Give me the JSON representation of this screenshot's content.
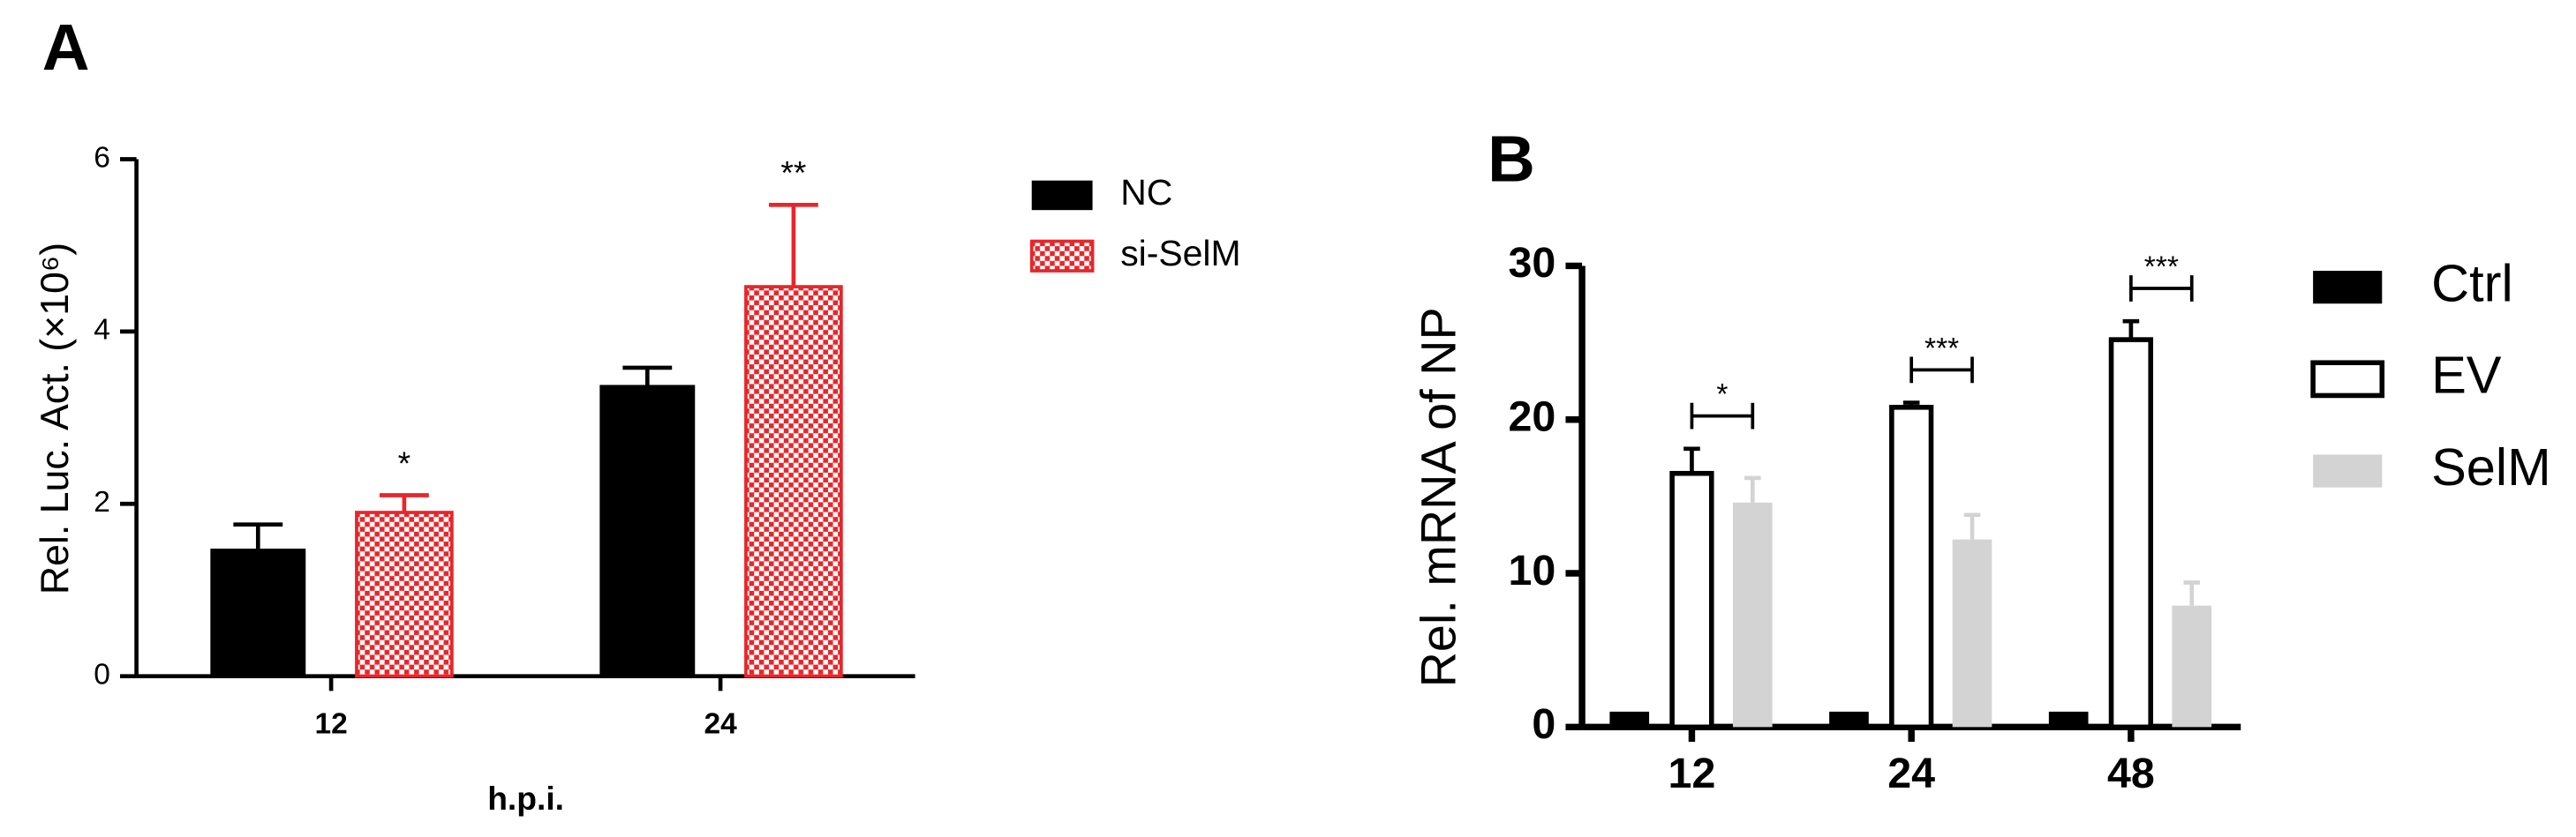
{
  "chart_data": [
    {
      "type": "bar",
      "panel": "A",
      "ylabel": "Rel. Luc. Act. (×10⁶)",
      "xlabel": "h.p.i.",
      "categories": [
        "12",
        "24"
      ],
      "series": [
        {
          "name": "NC",
          "color": "#000000",
          "fill_style": "solid",
          "values": [
            1.48,
            3.38
          ],
          "errors": [
            0.28,
            0.2
          ]
        },
        {
          "name": "si-SelM",
          "color": "#e8262a",
          "fill_style": "checkered",
          "values": [
            1.9,
            4.52
          ],
          "errors": [
            0.2,
            0.95
          ]
        }
      ],
      "annotations": [
        "*",
        "**"
      ],
      "ylim": [
        0,
        6
      ],
      "yticks": [
        0,
        2,
        4,
        6
      ]
    },
    {
      "type": "bar",
      "panel": "B",
      "ylabel": "Rel.  mRNA of NP",
      "categories": [
        "12",
        "24",
        "48"
      ],
      "series": [
        {
          "name": "Ctrl",
          "color": "#000000",
          "fill_style": "solid",
          "values": [
            1,
            1,
            1
          ]
        },
        {
          "name": "EV",
          "color": "#000000",
          "fill_style": "outline",
          "values": [
            16.5,
            20.8,
            25.2
          ],
          "errors": [
            1.6,
            0.3,
            1.2
          ]
        },
        {
          "name": "SelM",
          "color": "#d3d3d3",
          "fill_style": "solid",
          "values": [
            14.6,
            12.2,
            7.9
          ],
          "errors": [
            1.6,
            1.6,
            1.5
          ]
        }
      ],
      "significance": [
        "*",
        "***",
        "***"
      ],
      "ylim": [
        0,
        30
      ],
      "yticks": [
        0,
        10,
        20,
        30
      ]
    }
  ]
}
